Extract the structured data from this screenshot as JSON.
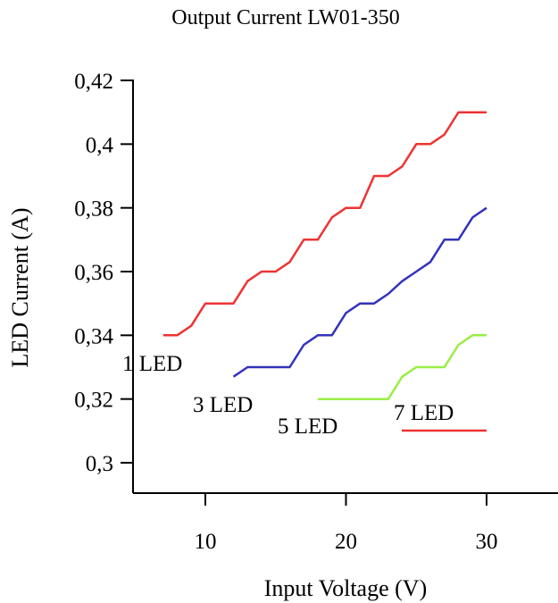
{
  "chart_data": {
    "type": "line",
    "title": "Output Current LW01-350",
    "xlabel": "Input Voltage (V)",
    "ylabel": "LED Current (A)",
    "xlim": [
      5,
      35
    ],
    "ylim": [
      0.29,
      0.42
    ],
    "xticks": [
      10,
      20,
      30
    ],
    "xtick_labels": [
      "10",
      "20",
      "30"
    ],
    "yticks": [
      0.3,
      0.32,
      0.34,
      0.36,
      0.38,
      0.4,
      0.42
    ],
    "ytick_labels": [
      "0,3",
      "0,32",
      "0,34",
      "0,36",
      "0,38",
      "0,4",
      "0,42"
    ],
    "grid": false,
    "series": [
      {
        "name": "1 LED",
        "color": "#3399cc",
        "x": [],
        "y": []
      },
      {
        "name": "3 LED",
        "color": "#3333bb",
        "x": [
          12,
          13,
          14,
          15,
          16,
          17,
          18,
          19,
          20,
          21,
          22,
          23,
          24,
          25,
          26,
          27,
          28,
          29,
          30
        ],
        "y": [
          0.327,
          0.33,
          0.33,
          0.33,
          0.33,
          0.337,
          0.34,
          0.34,
          0.347,
          0.35,
          0.35,
          0.353,
          0.357,
          0.36,
          0.363,
          0.37,
          0.37,
          0.377,
          0.38
        ]
      },
      {
        "name": "5 LED",
        "color": "#99ee44",
        "x": [
          18,
          19,
          20,
          21,
          22,
          23,
          24,
          25,
          26,
          27,
          28,
          29,
          30
        ],
        "y": [
          0.32,
          0.32,
          0.32,
          0.32,
          0.32,
          0.32,
          0.327,
          0.33,
          0.33,
          0.33,
          0.337,
          0.34,
          0.34
        ]
      },
      {
        "name": "7 LED",
        "color": "#ee3333",
        "x": [
          7,
          8,
          9,
          10,
          11,
          12,
          13,
          14,
          15,
          16,
          17,
          18,
          19,
          20,
          21,
          22,
          23,
          24,
          25,
          26,
          27,
          28,
          29,
          30
        ],
        "y": [
          0.34,
          0.34,
          0.343,
          0.35,
          0.35,
          0.35,
          0.357,
          0.36,
          0.36,
          0.363,
          0.37,
          0.37,
          0.377,
          0.38,
          0.38,
          0.39,
          0.39,
          0.393,
          0.4,
          0.4,
          0.403,
          0.41,
          0.41,
          0.41
        ]
      }
    ]
  }
}
